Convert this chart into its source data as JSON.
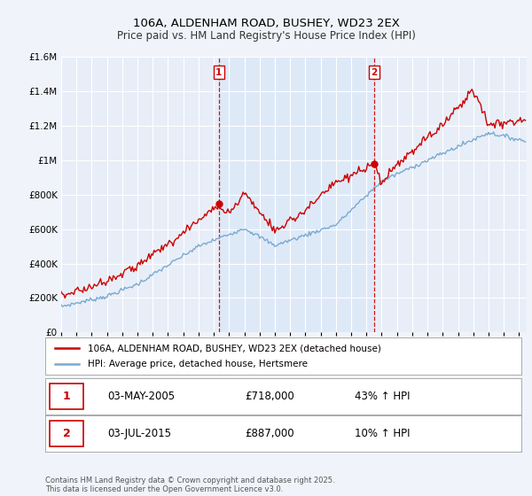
{
  "title1": "106A, ALDENHAM ROAD, BUSHEY, WD23 2EX",
  "title2": "Price paid vs. HM Land Registry's House Price Index (HPI)",
  "red_label": "106A, ALDENHAM ROAD, BUSHEY, WD23 2EX (detached house)",
  "blue_label": "HPI: Average price, detached house, Hertsmere",
  "annotation1": {
    "num": "1",
    "date": "03-MAY-2005",
    "price": "£718,000",
    "pct": "43% ↑ HPI",
    "x_year": 2005.33
  },
  "annotation2": {
    "num": "2",
    "date": "03-JUL-2015",
    "price": "£887,000",
    "pct": "10% ↑ HPI",
    "x_year": 2015.5
  },
  "footer": "Contains HM Land Registry data © Crown copyright and database right 2025.\nThis data is licensed under the Open Government Licence v3.0.",
  "background_color": "#f0f4fa",
  "plot_bg_color": "#e8eef8",
  "highlight_bg": "#dce8f8",
  "grid_color": "#ffffff",
  "red_color": "#cc0000",
  "blue_color": "#7aaad0",
  "vline_color": "#cc0000",
  "ylim": [
    0,
    1600000
  ],
  "xlim_start": 1995.0,
  "xlim_end": 2025.5,
  "yticks": [
    0,
    200000,
    400000,
    600000,
    800000,
    1000000,
    1200000,
    1400000,
    1600000
  ],
  "xticks": [
    1995,
    1996,
    1997,
    1998,
    1999,
    2000,
    2001,
    2002,
    2003,
    2004,
    2005,
    2006,
    2007,
    2008,
    2009,
    2010,
    2011,
    2012,
    2013,
    2014,
    2015,
    2016,
    2017,
    2018,
    2019,
    2020,
    2021,
    2022,
    2023,
    2024,
    2025
  ]
}
